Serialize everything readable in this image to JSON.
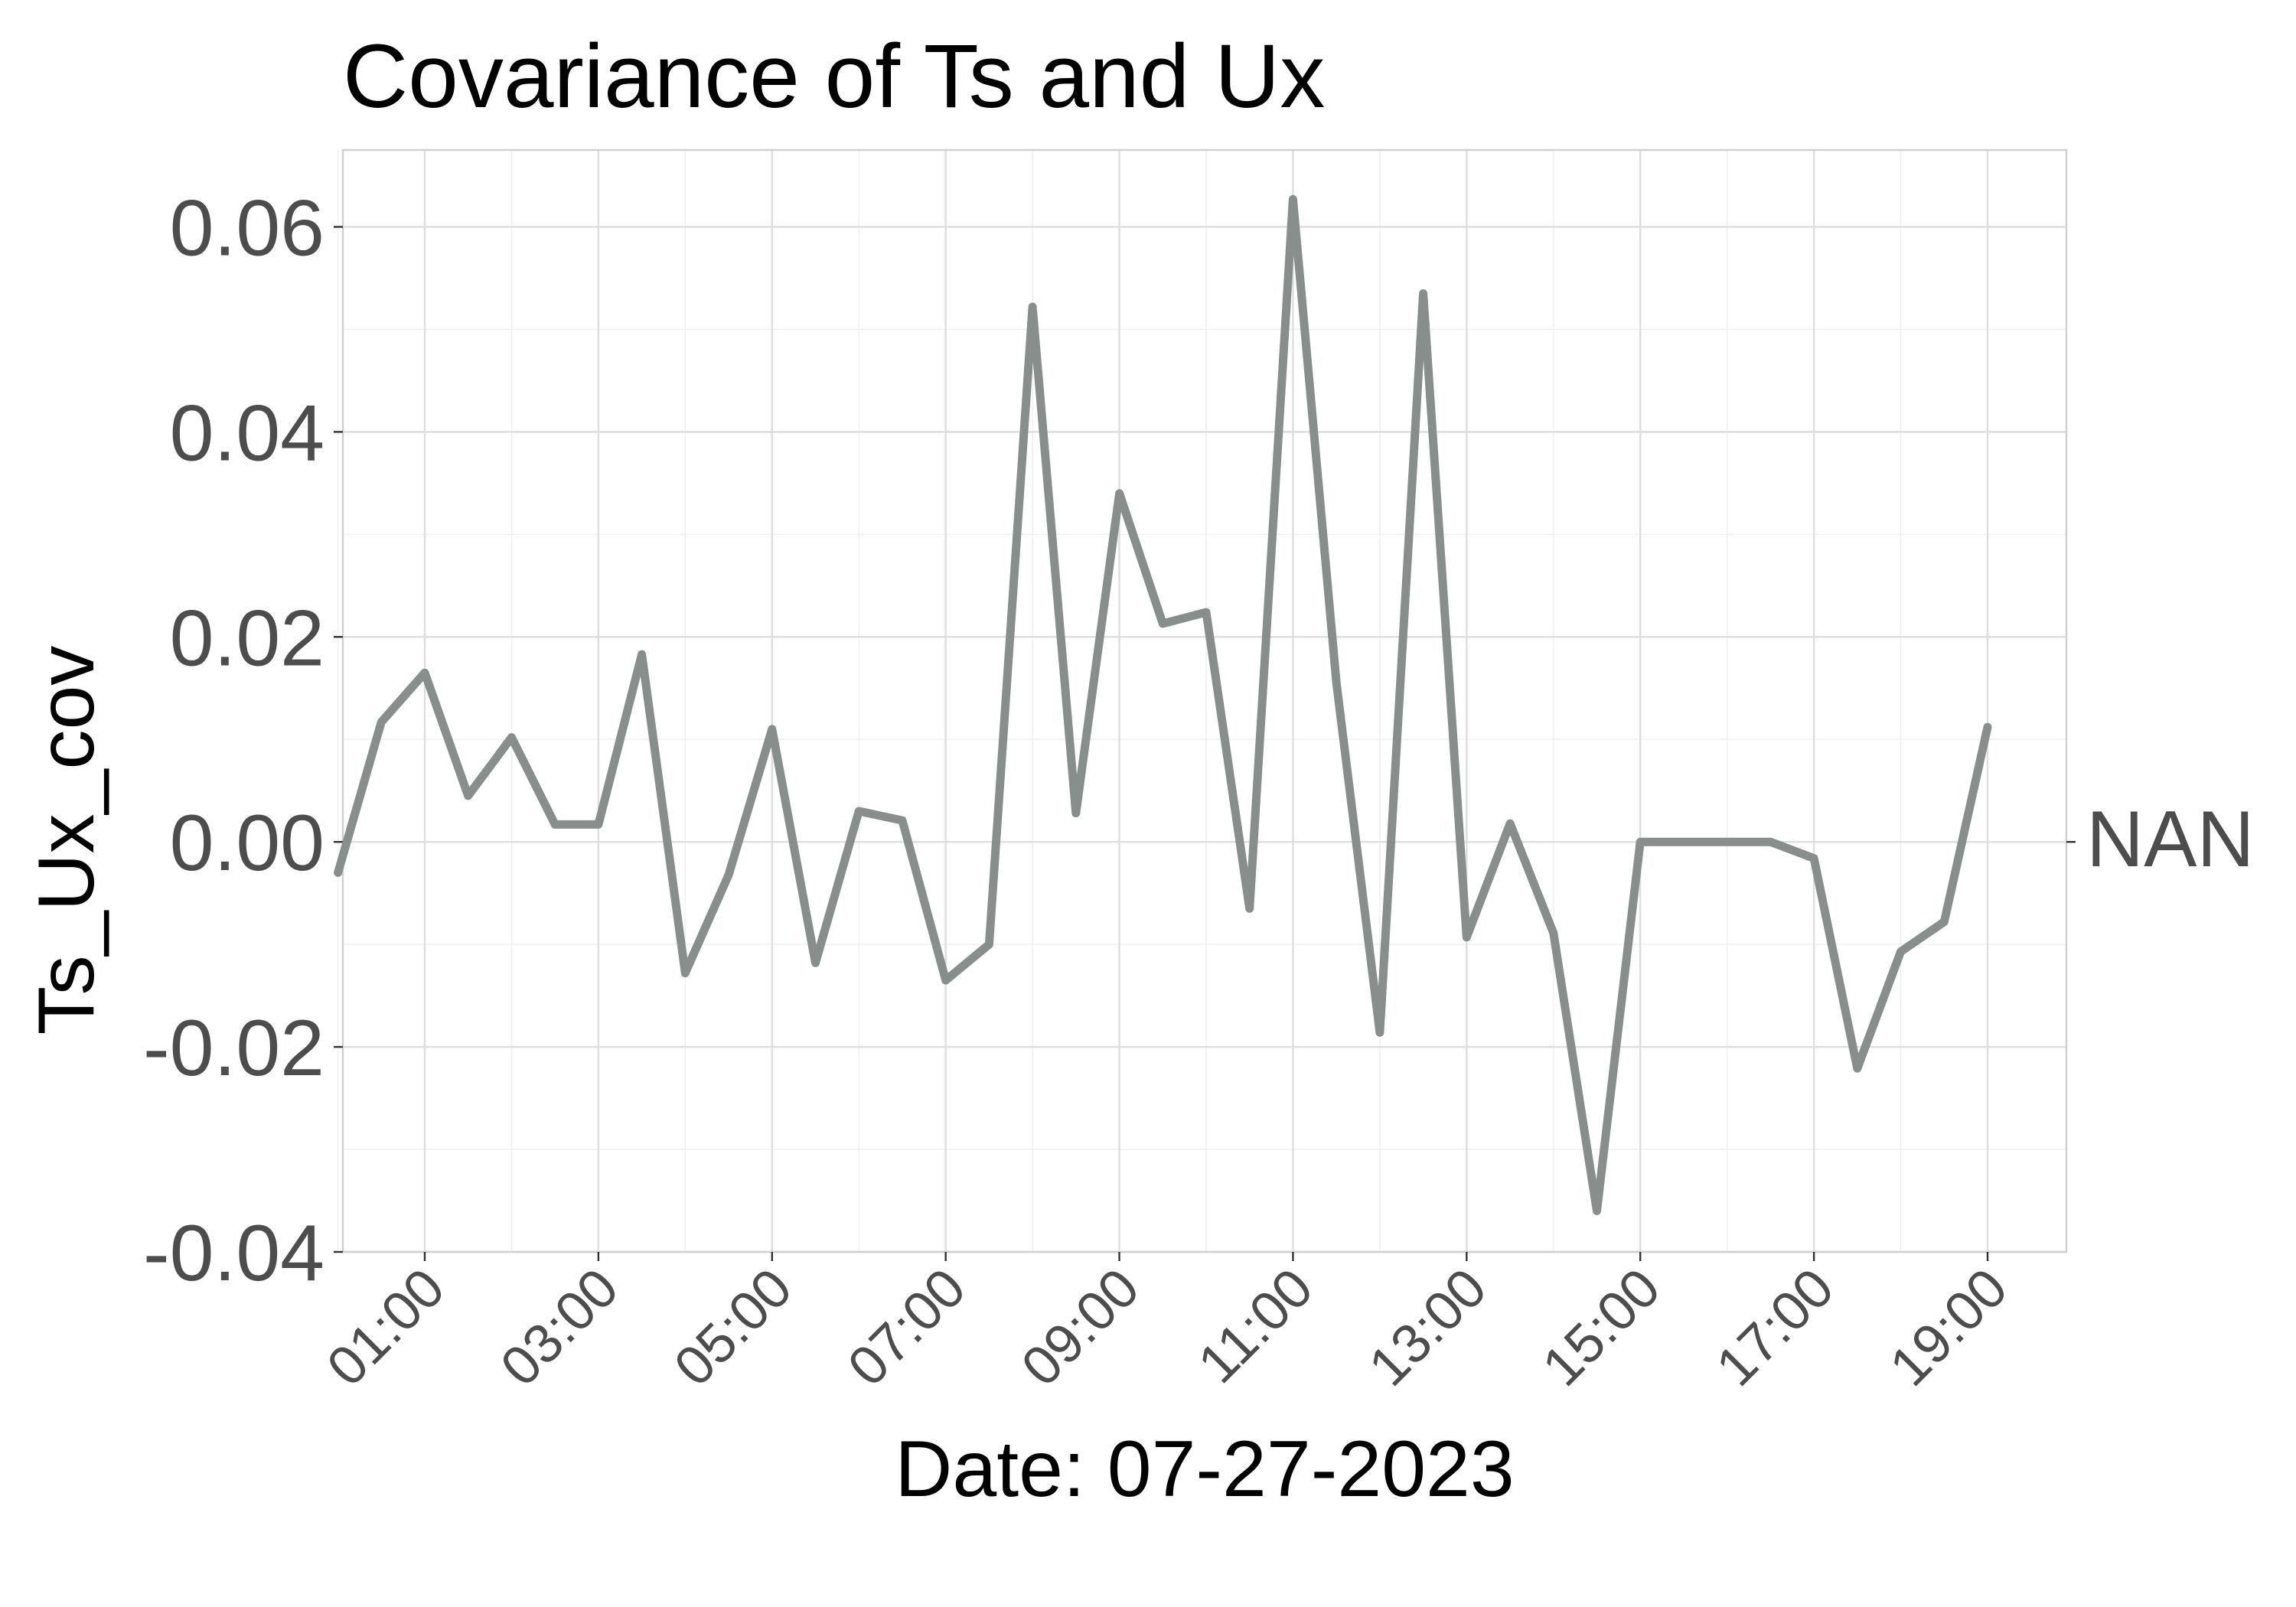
{
  "chart_data": {
    "type": "line",
    "title": "Covariance of Ts and Ux",
    "xlabel": "Date: 07-27-2023",
    "ylabel": "Ts_Ux_cov",
    "right_axis_label": "NAN",
    "x_tick_labels": [
      "01:00",
      "03:00",
      "05:00",
      "07:00",
      "09:00",
      "11:00",
      "13:00",
      "15:00",
      "17:00",
      "19:00"
    ],
    "y_ticks": [
      -0.04,
      -0.02,
      0.0,
      0.02,
      0.04,
      0.06
    ],
    "y_tick_labels": [
      "-0.04",
      "-0.02",
      "0.00",
      "0.02",
      "0.04",
      "0.06"
    ],
    "ylim": [
      -0.04,
      0.0675
    ],
    "xlim": [
      "00:00",
      "19:30"
    ],
    "grid": true,
    "line_color": "#878e8c",
    "series": [
      {
        "x": [
          "00:00",
          "00:30",
          "01:00",
          "01:30",
          "02:00",
          "02:30",
          "03:00",
          "03:30",
          "04:00",
          "04:30",
          "05:00",
          "05:30",
          "06:00",
          "06:30",
          "07:00",
          "07:30",
          "08:00",
          "08:30",
          "09:00",
          "09:30",
          "10:00",
          "10:30",
          "11:00",
          "11:30",
          "12:00",
          "12:30",
          "13:00",
          "13:30",
          "14:00",
          "14:30",
          "15:00",
          "15:30",
          "16:00",
          "16:30",
          "17:00",
          "17:30",
          "18:00",
          "18:30",
          "19:00"
        ],
        "values": [
          -0.003,
          0.0117,
          0.0165,
          0.0045,
          0.0102,
          0.0017,
          0.0017,
          0.0183,
          -0.0128,
          -0.0032,
          0.011,
          -0.0118,
          0.003,
          0.0021,
          -0.0135,
          -0.01,
          0.0522,
          0.0028,
          0.034,
          0.0213,
          0.0224,
          -0.0065,
          0.0627,
          0.0155,
          -0.0186,
          0.0535,
          -0.0093,
          0.0018,
          -0.0089,
          -0.036,
          0.0,
          0.0,
          0.0,
          0.0,
          -0.0016,
          -0.0221,
          -0.0107,
          -0.0078,
          0.0112
        ]
      }
    ]
  }
}
